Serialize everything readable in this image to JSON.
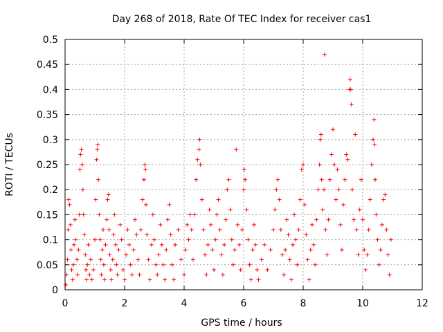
{
  "chart_data": {
    "type": "scatter",
    "title": "Day 268 of 2018, Rate Of TEC Index for receiver cas1",
    "xlabel": "GPS time / hours",
    "ylabel": "ROTI / TECUs",
    "xlim": [
      0,
      12
    ],
    "ylim": [
      0,
      0.5
    ],
    "x_ticks": [
      0,
      2,
      4,
      6,
      8,
      10,
      12
    ],
    "x_tick_labels": [
      "0",
      "2",
      "4",
      "6",
      "8",
      "10",
      "12"
    ],
    "y_ticks": [
      0,
      0.05,
      0.1,
      0.15,
      0.2,
      0.25,
      0.3,
      0.35,
      0.4,
      0.45,
      0.5
    ],
    "y_tick_labels": [
      "0",
      "0.05",
      "0.1",
      "0.15",
      "0.2",
      "0.25",
      "0.3",
      "0.35",
      "0.4",
      "0.45",
      "0.5"
    ],
    "grid": true,
    "marker": "+",
    "series": [
      {
        "name": "ROTI",
        "color": "#ff0000",
        "points": [
          [
            0.02,
            0.01
          ],
          [
            0.05,
            0.03
          ],
          [
            0.08,
            0.06
          ],
          [
            0.1,
            0.12
          ],
          [
            0.12,
            0.18
          ],
          [
            0.15,
            0.17
          ],
          [
            0.18,
            0.13
          ],
          [
            0.2,
            0.08
          ],
          [
            0.22,
            0.04
          ],
          [
            0.25,
            0.02
          ],
          [
            0.28,
            0.05
          ],
          [
            0.3,
            0.09
          ],
          [
            0.33,
            0.14
          ],
          [
            0.36,
            0.1
          ],
          [
            0.4,
            0.06
          ],
          [
            0.42,
            0.03
          ],
          [
            0.45,
            0.08
          ],
          [
            0.48,
            0.15
          ],
          [
            0.5,
            0.24
          ],
          [
            0.52,
            0.27
          ],
          [
            0.55,
            0.28
          ],
          [
            0.58,
            0.25
          ],
          [
            0.6,
            0.2
          ],
          [
            0.62,
            0.15
          ],
          [
            0.65,
            0.11
          ],
          [
            0.68,
            0.07
          ],
          [
            0.7,
            0.04
          ],
          [
            0.72,
            0.02
          ],
          [
            0.75,
            0.05
          ],
          [
            0.78,
            0.09
          ],
          [
            0.82,
            0.03
          ],
          [
            0.86,
            0.06
          ],
          [
            0.9,
            0.02
          ],
          [
            0.95,
            0.04
          ],
          [
            1.0,
            0.1
          ],
          [
            1.03,
            0.18
          ],
          [
            1.06,
            0.26
          ],
          [
            1.08,
            0.28
          ],
          [
            1.1,
            0.29
          ],
          [
            1.12,
            0.22
          ],
          [
            1.15,
            0.15
          ],
          [
            1.18,
            0.1
          ],
          [
            1.2,
            0.06
          ],
          [
            1.22,
            0.03
          ],
          [
            1.25,
            0.08
          ],
          [
            1.28,
            0.12
          ],
          [
            1.3,
            0.05
          ],
          [
            1.33,
            0.02
          ],
          [
            1.36,
            0.09
          ],
          [
            1.4,
            0.14
          ],
          [
            1.43,
            0.18
          ],
          [
            1.46,
            0.19
          ],
          [
            1.48,
            0.12
          ],
          [
            1.5,
            0.07
          ],
          [
            1.53,
            0.04
          ],
          [
            1.56,
            0.02
          ],
          [
            1.6,
            0.06
          ],
          [
            1.63,
            0.11
          ],
          [
            1.66,
            0.15
          ],
          [
            1.7,
            0.09
          ],
          [
            1.73,
            0.05
          ],
          [
            1.76,
            0.03
          ],
          [
            1.8,
            0.08
          ],
          [
            1.85,
            0.13
          ],
          [
            1.9,
            0.1
          ],
          [
            1.95,
            0.04
          ],
          [
            2.0,
            0.02
          ],
          [
            2.05,
            0.07
          ],
          [
            2.1,
            0.12
          ],
          [
            2.15,
            0.09
          ],
          [
            2.2,
            0.05
          ],
          [
            2.25,
            0.03
          ],
          [
            2.3,
            0.08
          ],
          [
            2.35,
            0.14
          ],
          [
            2.4,
            0.11
          ],
          [
            2.45,
            0.06
          ],
          [
            2.5,
            0.03
          ],
          [
            2.55,
            0.12
          ],
          [
            2.6,
            0.18
          ],
          [
            2.65,
            0.22
          ],
          [
            2.68,
            0.25
          ],
          [
            2.7,
            0.24
          ],
          [
            2.72,
            0.17
          ],
          [
            2.75,
            0.11
          ],
          [
            2.8,
            0.06
          ],
          [
            2.85,
            0.02
          ],
          [
            2.9,
            0.09
          ],
          [
            2.95,
            0.15
          ],
          [
            3.0,
            0.1
          ],
          [
            3.05,
            0.05
          ],
          [
            3.1,
            0.03
          ],
          [
            3.15,
            0.07
          ],
          [
            3.2,
            0.13
          ],
          [
            3.25,
            0.09
          ],
          [
            3.3,
            0.05
          ],
          [
            3.35,
            0.02
          ],
          [
            3.4,
            0.08
          ],
          [
            3.45,
            0.14
          ],
          [
            3.5,
            0.17
          ],
          [
            3.55,
            0.11
          ],
          [
            3.6,
            0.05
          ],
          [
            3.65,
            0.02
          ],
          [
            3.7,
            0.09
          ],
          [
            3.8,
            0.12
          ],
          [
            3.9,
            0.06
          ],
          [
            4.0,
            0.03
          ],
          [
            4.05,
            0.08
          ],
          [
            4.1,
            0.13
          ],
          [
            4.15,
            0.1
          ],
          [
            4.2,
            0.15
          ],
          [
            4.25,
            0.12
          ],
          [
            4.3,
            0.06
          ],
          [
            4.35,
            0.15
          ],
          [
            4.4,
            0.22
          ],
          [
            4.45,
            0.26
          ],
          [
            4.5,
            0.28
          ],
          [
            4.52,
            0.3
          ],
          [
            4.55,
            0.25
          ],
          [
            4.6,
            0.18
          ],
          [
            4.65,
            0.12
          ],
          [
            4.7,
            0.07
          ],
          [
            4.75,
            0.03
          ],
          [
            4.8,
            0.09
          ],
          [
            4.85,
            0.16
          ],
          [
            4.9,
            0.13
          ],
          [
            4.95,
            0.08
          ],
          [
            5.0,
            0.04
          ],
          [
            5.05,
            0.1
          ],
          [
            5.1,
            0.15
          ],
          [
            5.15,
            0.18
          ],
          [
            5.2,
            0.12
          ],
          [
            5.25,
            0.07
          ],
          [
            5.3,
            0.03
          ],
          [
            5.35,
            0.09
          ],
          [
            5.4,
            0.14
          ],
          [
            5.45,
            0.2
          ],
          [
            5.5,
            0.22
          ],
          [
            5.55,
            0.16
          ],
          [
            5.6,
            0.1
          ],
          [
            5.65,
            0.05
          ],
          [
            5.7,
            0.08
          ],
          [
            5.75,
            0.28
          ],
          [
            5.8,
            0.13
          ],
          [
            5.85,
            0.09
          ],
          [
            5.9,
            0.04
          ],
          [
            5.95,
            0.12
          ],
          [
            6.0,
            0.2
          ],
          [
            6.02,
            0.24
          ],
          [
            6.05,
            0.22
          ],
          [
            6.1,
            0.16
          ],
          [
            6.15,
            0.1
          ],
          [
            6.2,
            0.05
          ],
          [
            6.25,
            0.02
          ],
          [
            6.3,
            0.08
          ],
          [
            6.35,
            0.13
          ],
          [
            6.4,
            0.09
          ],
          [
            6.45,
            0.04
          ],
          [
            6.5,
            0.02
          ],
          [
            6.6,
            0.06
          ],
          [
            6.7,
            0.09
          ],
          [
            6.8,
            0.04
          ],
          [
            6.9,
            0.08
          ],
          [
            7.0,
            0.12
          ],
          [
            7.05,
            0.16
          ],
          [
            7.1,
            0.2
          ],
          [
            7.15,
            0.22
          ],
          [
            7.2,
            0.18
          ],
          [
            7.25,
            0.12
          ],
          [
            7.3,
            0.07
          ],
          [
            7.35,
            0.03
          ],
          [
            7.4,
            0.08
          ],
          [
            7.45,
            0.14
          ],
          [
            7.5,
            0.11
          ],
          [
            7.55,
            0.06
          ],
          [
            7.6,
            0.02
          ],
          [
            7.65,
            0.09
          ],
          [
            7.7,
            0.15
          ],
          [
            7.75,
            0.1
          ],
          [
            7.8,
            0.05
          ],
          [
            7.85,
            0.12
          ],
          [
            7.9,
            0.18
          ],
          [
            7.95,
            0.24
          ],
          [
            8.0,
            0.25
          ],
          [
            8.05,
            0.17
          ],
          [
            8.1,
            0.11
          ],
          [
            8.15,
            0.06
          ],
          [
            8.2,
            0.02
          ],
          [
            8.25,
            0.08
          ],
          [
            8.3,
            0.13
          ],
          [
            8.35,
            0.09
          ],
          [
            8.4,
            0.05
          ],
          [
            8.45,
            0.14
          ],
          [
            8.5,
            0.2
          ],
          [
            8.55,
            0.25
          ],
          [
            8.58,
            0.3
          ],
          [
            8.6,
            0.31
          ],
          [
            8.62,
            0.22
          ],
          [
            8.65,
            0.16
          ],
          [
            8.7,
            0.2
          ],
          [
            8.72,
            0.47
          ],
          [
            8.75,
            0.12
          ],
          [
            8.8,
            0.07
          ],
          [
            8.85,
            0.14
          ],
          [
            8.9,
            0.22
          ],
          [
            8.95,
            0.27
          ],
          [
            9.0,
            0.32
          ],
          [
            9.05,
            0.25
          ],
          [
            9.1,
            0.18
          ],
          [
            9.15,
            0.24
          ],
          [
            9.2,
            0.2
          ],
          [
            9.25,
            0.13
          ],
          [
            9.3,
            0.08
          ],
          [
            9.35,
            0.17
          ],
          [
            9.4,
            0.22
          ],
          [
            9.45,
            0.27
          ],
          [
            9.5,
            0.26
          ],
          [
            9.55,
            0.4
          ],
          [
            9.58,
            0.42
          ],
          [
            9.6,
            0.4
          ],
          [
            9.62,
            0.37
          ],
          [
            9.65,
            0.2
          ],
          [
            9.7,
            0.14
          ],
          [
            9.75,
            0.31
          ],
          [
            9.8,
            0.12
          ],
          [
            9.85,
            0.07
          ],
          [
            9.9,
            0.16
          ],
          [
            9.95,
            0.22
          ],
          [
            10.0,
            0.14
          ],
          [
            10.05,
            0.08
          ],
          [
            10.1,
            0.04
          ],
          [
            10.15,
            0.07
          ],
          [
            10.2,
            0.12
          ],
          [
            10.25,
            0.18
          ],
          [
            10.3,
            0.25
          ],
          [
            10.35,
            0.3
          ],
          [
            10.38,
            0.34
          ],
          [
            10.4,
            0.29
          ],
          [
            10.42,
            0.22
          ],
          [
            10.45,
            0.15
          ],
          [
            10.5,
            0.1
          ],
          [
            10.55,
            0.05
          ],
          [
            10.6,
            0.08
          ],
          [
            10.65,
            0.13
          ],
          [
            10.7,
            0.18
          ],
          [
            10.75,
            0.19
          ],
          [
            10.8,
            0.12
          ],
          [
            10.85,
            0.07
          ],
          [
            10.9,
            0.03
          ],
          [
            10.95,
            0.1
          ]
        ]
      }
    ]
  }
}
